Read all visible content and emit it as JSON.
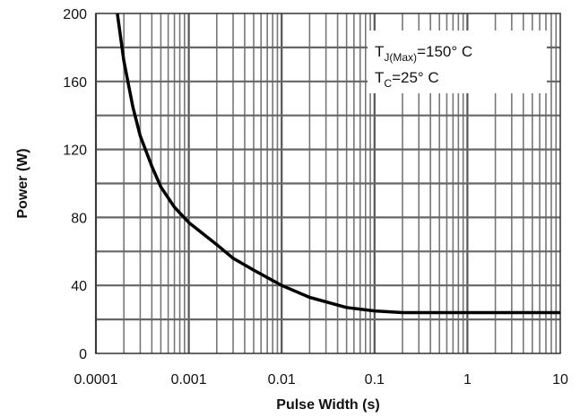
{
  "chart_data": {
    "type": "line",
    "xscale": "log",
    "xlim": [
      0.0001,
      10
    ],
    "ylim": [
      0,
      200
    ],
    "xlabel": "Pulse Width (s)",
    "ylabel": "Power (W)",
    "title": "",
    "grid": true,
    "x_ticks": [
      "0.0001",
      "0.001",
      "0.01",
      "0.1",
      "1",
      "10"
    ],
    "y_ticks": [
      "0",
      "40",
      "80",
      "120",
      "160",
      "200"
    ],
    "annotations": [
      {
        "main": "T",
        "sub": "J(Max)",
        "rest": "=150° C"
      },
      {
        "main": "T",
        "sub": "C",
        "rest": "=25° C"
      }
    ],
    "series": [
      {
        "color": "#000000",
        "x": [
          0.00017,
          0.0002,
          0.00025,
          0.0003,
          0.0004,
          0.0005,
          0.0007,
          0.001,
          0.002,
          0.003,
          0.005,
          0.01,
          0.02,
          0.05,
          0.1,
          0.2,
          0.5,
          1,
          10
        ],
        "y": [
          200,
          172,
          145,
          128,
          110,
          98,
          86,
          77,
          64,
          56,
          49,
          40,
          33,
          27,
          25,
          24,
          24,
          24,
          24
        ]
      }
    ]
  }
}
